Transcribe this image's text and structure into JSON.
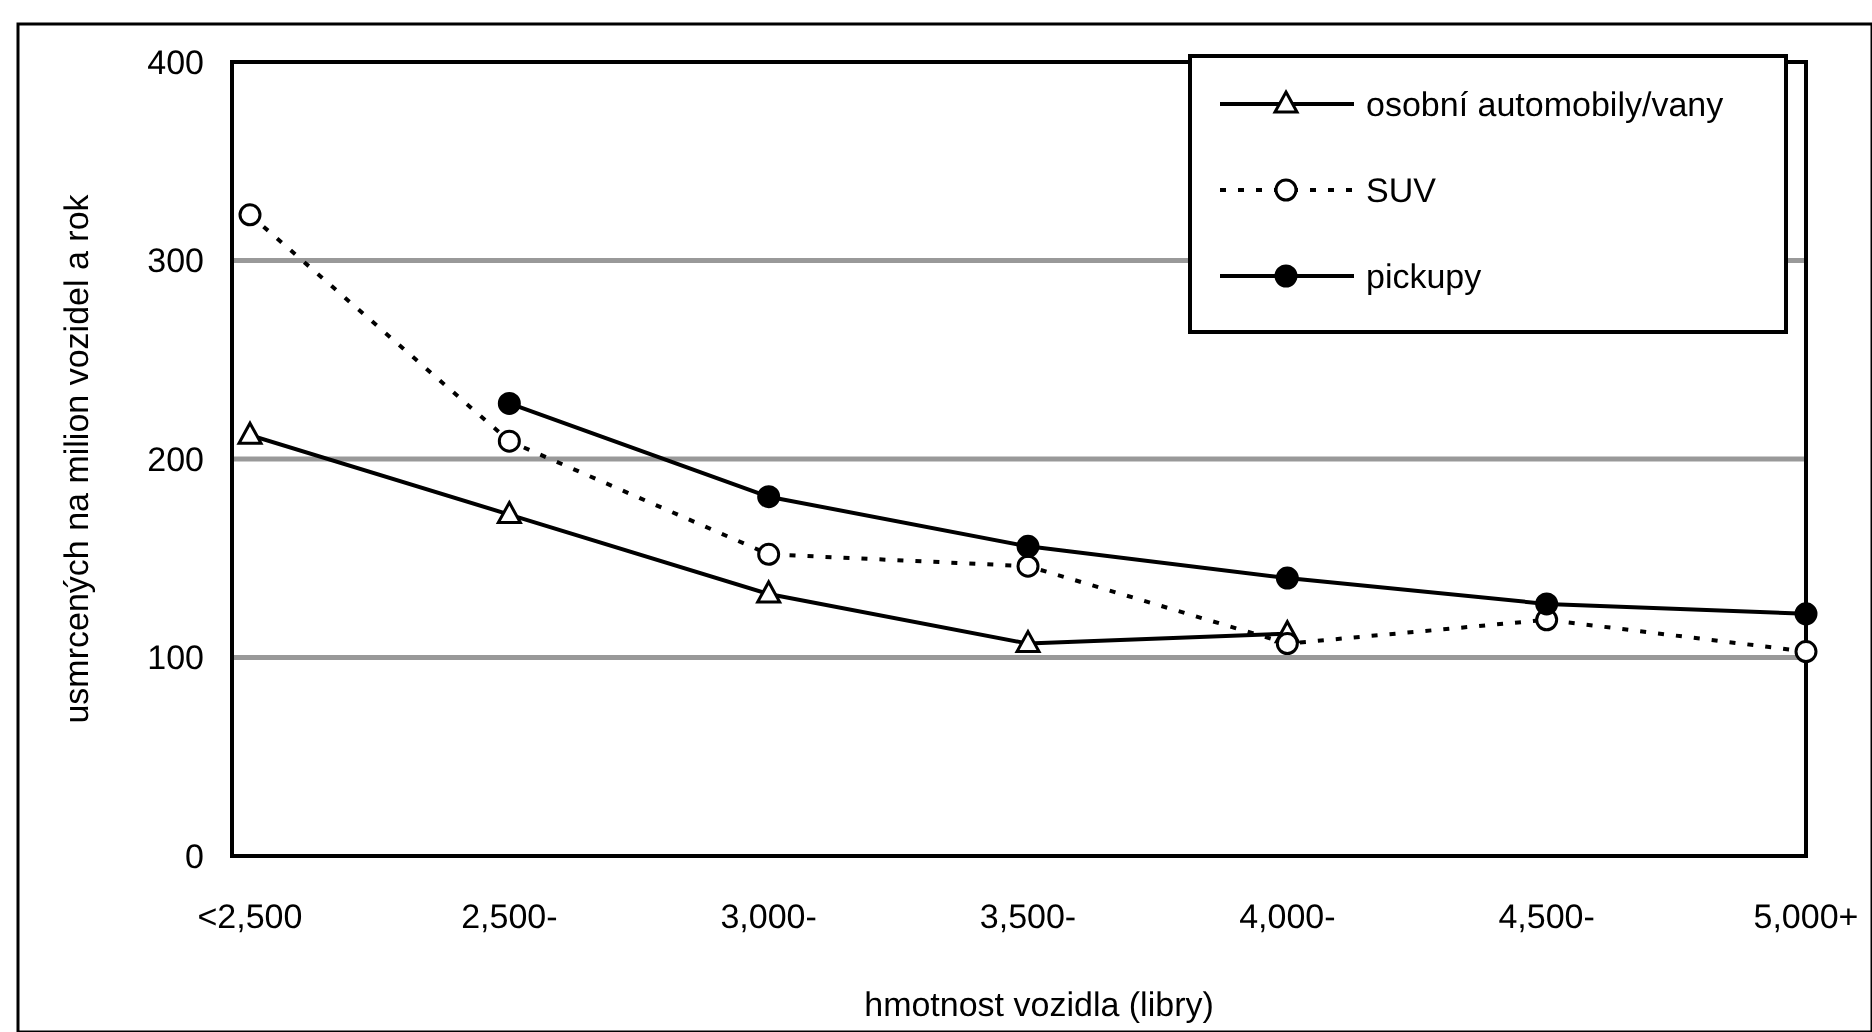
{
  "chart_data": {
    "type": "line",
    "xlabel": "hmotnost vozidla (libry)",
    "ylabel": "usmrcených na milion vozidel a rok",
    "categories": [
      "<2,500",
      "2,500-",
      "3,000-",
      "3,500-",
      "4,000-",
      "4,500-",
      "5,000+"
    ],
    "ylim": [
      0,
      400
    ],
    "yticks": [
      0,
      100,
      200,
      300,
      400
    ],
    "grid": "y",
    "legend": "top right",
    "series": [
      {
        "name": "osobní automobily/vany",
        "color": "#000000",
        "marker": "triangle",
        "line_style": "solid",
        "values": [
          212,
          172,
          132,
          107,
          112,
          null,
          null
        ]
      },
      {
        "name": "SUV",
        "color": "#000000",
        "marker": "circle",
        "line_style": "dotted",
        "values": [
          323,
          209,
          152,
          146,
          107,
          119,
          103
        ]
      },
      {
        "name": "pickupy",
        "color": "#000000",
        "marker": "circle",
        "line_style": "solid",
        "values": [
          null,
          228,
          181,
          156,
          140,
          127,
          122
        ]
      }
    ]
  }
}
